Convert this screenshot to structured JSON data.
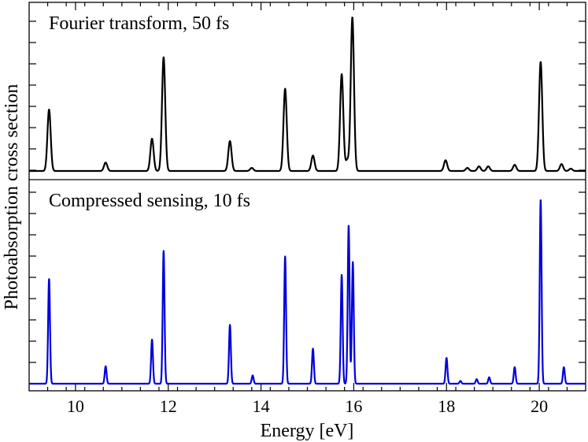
{
  "chart_data": {
    "type": "line",
    "xlabel": "Energy [eV]",
    "ylabel": "Photoabsorption cross section",
    "xlim": [
      9.0,
      21.0
    ],
    "x_ticks": [
      10,
      12,
      14,
      16,
      18,
      20
    ],
    "x_tick_labels": [
      "10",
      "12",
      "14",
      "16",
      "18",
      "20"
    ],
    "x_minor_step": 0.4,
    "panels": [
      {
        "title": "Fourier transform, 50 fs",
        "color": "#000000",
        "peak_width_ev": 0.035,
        "peaks": [
          {
            "x": 9.43,
            "y": 0.4
          },
          {
            "x": 10.65,
            "y": 0.055
          },
          {
            "x": 11.65,
            "y": 0.21
          },
          {
            "x": 11.9,
            "y": 0.74
          },
          {
            "x": 13.33,
            "y": 0.195
          },
          {
            "x": 13.8,
            "y": 0.02
          },
          {
            "x": 14.52,
            "y": 0.535
          },
          {
            "x": 15.12,
            "y": 0.1
          },
          {
            "x": 15.74,
            "y": 0.63
          },
          {
            "x": 15.86,
            "y": 0.07
          },
          {
            "x": 15.97,
            "y": 1.0
          },
          {
            "x": 17.98,
            "y": 0.07
          },
          {
            "x": 18.45,
            "y": 0.02
          },
          {
            "x": 18.7,
            "y": 0.03
          },
          {
            "x": 18.9,
            "y": 0.03
          },
          {
            "x": 19.47,
            "y": 0.04
          },
          {
            "x": 20.03,
            "y": 0.71
          },
          {
            "x": 20.48,
            "y": 0.045
          },
          {
            "x": 20.68,
            "y": 0.015
          }
        ]
      },
      {
        "title": "Compressed sensing, 10 fs",
        "color": "#0000dd",
        "peak_width_ev": 0.02,
        "peaks": [
          {
            "x": 9.43,
            "y": 0.57
          },
          {
            "x": 10.65,
            "y": 0.095
          },
          {
            "x": 11.65,
            "y": 0.24
          },
          {
            "x": 11.9,
            "y": 0.72
          },
          {
            "x": 13.33,
            "y": 0.32
          },
          {
            "x": 13.82,
            "y": 0.045
          },
          {
            "x": 14.52,
            "y": 0.69
          },
          {
            "x": 15.12,
            "y": 0.19
          },
          {
            "x": 15.74,
            "y": 0.59
          },
          {
            "x": 15.89,
            "y": 0.86
          },
          {
            "x": 15.98,
            "y": 0.66
          },
          {
            "x": 18.0,
            "y": 0.14
          },
          {
            "x": 18.3,
            "y": 0.015
          },
          {
            "x": 18.65,
            "y": 0.025
          },
          {
            "x": 18.92,
            "y": 0.035
          },
          {
            "x": 19.47,
            "y": 0.09
          },
          {
            "x": 20.03,
            "y": 1.0
          },
          {
            "x": 20.53,
            "y": 0.09
          }
        ]
      }
    ]
  }
}
